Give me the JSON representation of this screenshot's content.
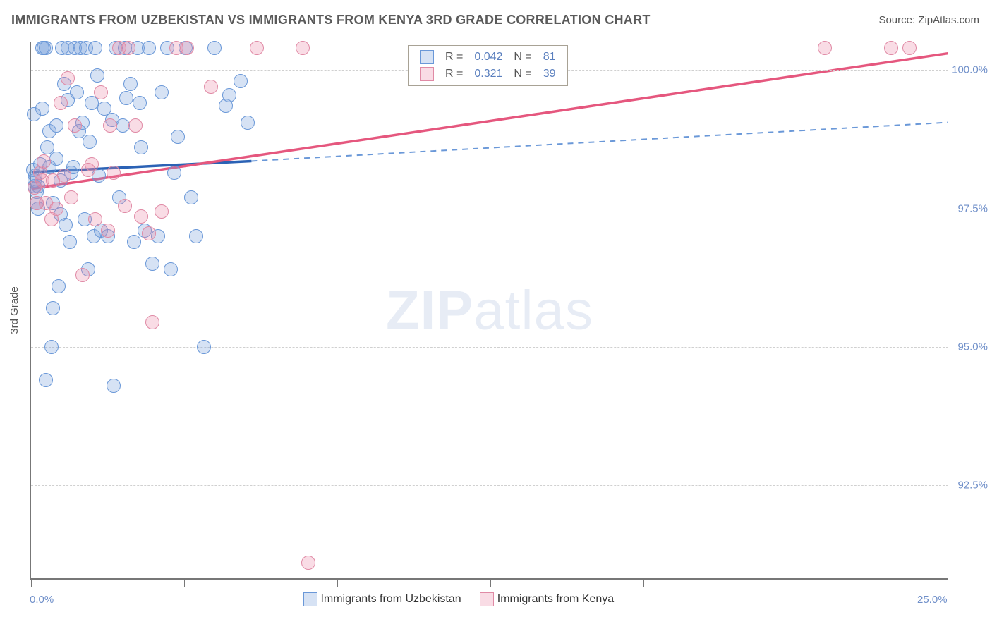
{
  "title": "IMMIGRANTS FROM UZBEKISTAN VS IMMIGRANTS FROM KENYA 3RD GRADE CORRELATION CHART",
  "source_label": "Source: ZipAtlas.com",
  "yaxis_title": "3rd Grade",
  "watermark_a": "ZIP",
  "watermark_b": "atlas",
  "chart": {
    "type": "scatter",
    "x_range": [
      0.0,
      25.0
    ],
    "y_range": [
      90.8,
      100.5
    ],
    "y_ticks": [
      92.5,
      95.0,
      97.5,
      100.0
    ],
    "y_tick_labels": [
      "92.5%",
      "95.0%",
      "97.5%",
      "100.0%"
    ],
    "x_ticks_minor": [
      0,
      4.17,
      8.33,
      12.5,
      16.67,
      20.83,
      25.0
    ],
    "x_labels": [
      {
        "val": 0.0,
        "text": "0.0%"
      },
      {
        "val": 25.0,
        "text": "25.0%"
      }
    ],
    "grid_color": "#d0d0d0",
    "marker_radius": 10,
    "series": [
      {
        "name": "Immigrants from Uzbekistan",
        "fill": "rgba(120,160,220,0.30)",
        "stroke": "#6a98d8",
        "line_color": "#2b62b5",
        "dash_color": "#6a98d8",
        "R": "0.042",
        "N": "81",
        "trend": {
          "x1": 0.0,
          "y1": 98.15,
          "x2_solid": 6.0,
          "y2_solid": 98.35,
          "x2": 25.0,
          "y2": 99.05
        },
        "points": [
          [
            0.05,
            98.2
          ],
          [
            0.08,
            99.2
          ],
          [
            0.1,
            98.0
          ],
          [
            0.1,
            97.9
          ],
          [
            0.12,
            98.1
          ],
          [
            0.15,
            97.8
          ],
          [
            0.15,
            97.6
          ],
          [
            0.2,
            97.9
          ],
          [
            0.2,
            97.5
          ],
          [
            0.25,
            98.3
          ],
          [
            0.3,
            99.3
          ],
          [
            0.3,
            100.4
          ],
          [
            0.35,
            100.4
          ],
          [
            0.4,
            100.4
          ],
          [
            0.4,
            94.4
          ],
          [
            0.45,
            98.6
          ],
          [
            0.5,
            98.9
          ],
          [
            0.5,
            98.25
          ],
          [
            0.55,
            95.0
          ],
          [
            0.6,
            95.7
          ],
          [
            0.6,
            97.6
          ],
          [
            0.7,
            99.0
          ],
          [
            0.7,
            98.4
          ],
          [
            0.75,
            96.1
          ],
          [
            0.8,
            97.4
          ],
          [
            0.8,
            98.0
          ],
          [
            0.85,
            100.4
          ],
          [
            0.9,
            99.75
          ],
          [
            0.95,
            97.2
          ],
          [
            1.0,
            99.45
          ],
          [
            1.0,
            100.4
          ],
          [
            1.05,
            96.9
          ],
          [
            1.1,
            98.15
          ],
          [
            1.15,
            98.25
          ],
          [
            1.2,
            100.4
          ],
          [
            1.25,
            99.6
          ],
          [
            1.3,
            98.9
          ],
          [
            1.35,
            100.4
          ],
          [
            1.4,
            99.05
          ],
          [
            1.45,
            97.3
          ],
          [
            1.5,
            100.4
          ],
          [
            1.55,
            96.4
          ],
          [
            1.6,
            98.7
          ],
          [
            1.65,
            99.4
          ],
          [
            1.7,
            97.0
          ],
          [
            1.75,
            100.4
          ],
          [
            1.8,
            99.9
          ],
          [
            1.85,
            98.1
          ],
          [
            1.9,
            97.1
          ],
          [
            2.0,
            99.3
          ],
          [
            2.1,
            97.0
          ],
          [
            2.2,
            99.1
          ],
          [
            2.25,
            94.3
          ],
          [
            2.3,
            100.4
          ],
          [
            2.4,
            97.7
          ],
          [
            2.5,
            99.0
          ],
          [
            2.55,
            100.4
          ],
          [
            2.6,
            99.5
          ],
          [
            2.7,
            99.75
          ],
          [
            2.8,
            96.9
          ],
          [
            2.9,
            100.4
          ],
          [
            2.95,
            99.4
          ],
          [
            3.0,
            98.6
          ],
          [
            3.1,
            97.1
          ],
          [
            3.2,
            100.4
          ],
          [
            3.3,
            96.5
          ],
          [
            3.45,
            97.0
          ],
          [
            3.55,
            99.6
          ],
          [
            3.7,
            100.4
          ],
          [
            3.8,
            96.4
          ],
          [
            3.9,
            98.15
          ],
          [
            4.0,
            98.8
          ],
          [
            4.2,
            100.4
          ],
          [
            4.35,
            97.7
          ],
          [
            4.5,
            97.0
          ],
          [
            4.7,
            95.0
          ],
          [
            5.0,
            100.4
          ],
          [
            5.3,
            99.35
          ],
          [
            5.4,
            99.55
          ],
          [
            5.7,
            99.8
          ],
          [
            5.9,
            99.05
          ]
        ]
      },
      {
        "name": "Immigrants from Kenya",
        "fill": "rgba(235,130,160,0.28)",
        "stroke": "#e08aa5",
        "line_color": "#e5577e",
        "dash_color": "#e5577e",
        "R": "0.321",
        "N": "39",
        "trend": {
          "x1": 0.0,
          "y1": 97.85,
          "x2_solid": 25.0,
          "y2_solid": 100.3,
          "x2": 25.0,
          "y2": 100.3
        },
        "points": [
          [
            0.1,
            97.88
          ],
          [
            0.15,
            97.6
          ],
          [
            0.25,
            98.15
          ],
          [
            0.3,
            98.0
          ],
          [
            0.35,
            98.35
          ],
          [
            0.4,
            97.6
          ],
          [
            0.55,
            97.3
          ],
          [
            0.6,
            98.0
          ],
          [
            0.7,
            97.5
          ],
          [
            0.8,
            99.4
          ],
          [
            0.9,
            98.1
          ],
          [
            1.0,
            99.85
          ],
          [
            1.1,
            97.7
          ],
          [
            1.2,
            99.0
          ],
          [
            1.4,
            96.3
          ],
          [
            1.55,
            98.2
          ],
          [
            1.65,
            98.3
          ],
          [
            1.75,
            97.3
          ],
          [
            1.9,
            99.6
          ],
          [
            2.1,
            97.1
          ],
          [
            2.25,
            98.15
          ],
          [
            2.4,
            100.4
          ],
          [
            2.55,
            97.55
          ],
          [
            2.65,
            100.4
          ],
          [
            2.85,
            99.0
          ],
          [
            3.0,
            97.35
          ],
          [
            3.2,
            97.05
          ],
          [
            3.3,
            95.45
          ],
          [
            3.55,
            97.45
          ],
          [
            3.95,
            100.4
          ],
          [
            4.25,
            100.4
          ],
          [
            4.9,
            99.7
          ],
          [
            6.15,
            100.4
          ],
          [
            7.4,
            100.4
          ],
          [
            7.55,
            91.1
          ],
          [
            21.6,
            100.4
          ],
          [
            23.4,
            100.4
          ],
          [
            23.9,
            100.4
          ],
          [
            2.15,
            99.0
          ]
        ]
      }
    ]
  },
  "legend_rn": {
    "label_R": "R =",
    "label_N": "N ="
  },
  "legend_bottom_label_a": "Immigrants from Uzbekistan",
  "legend_bottom_label_b": "Immigrants from Kenya",
  "colors": {
    "text_title": "#5a5a5a",
    "text_axis": "#6f8fc9",
    "stat_val": "#5a7fbe"
  }
}
